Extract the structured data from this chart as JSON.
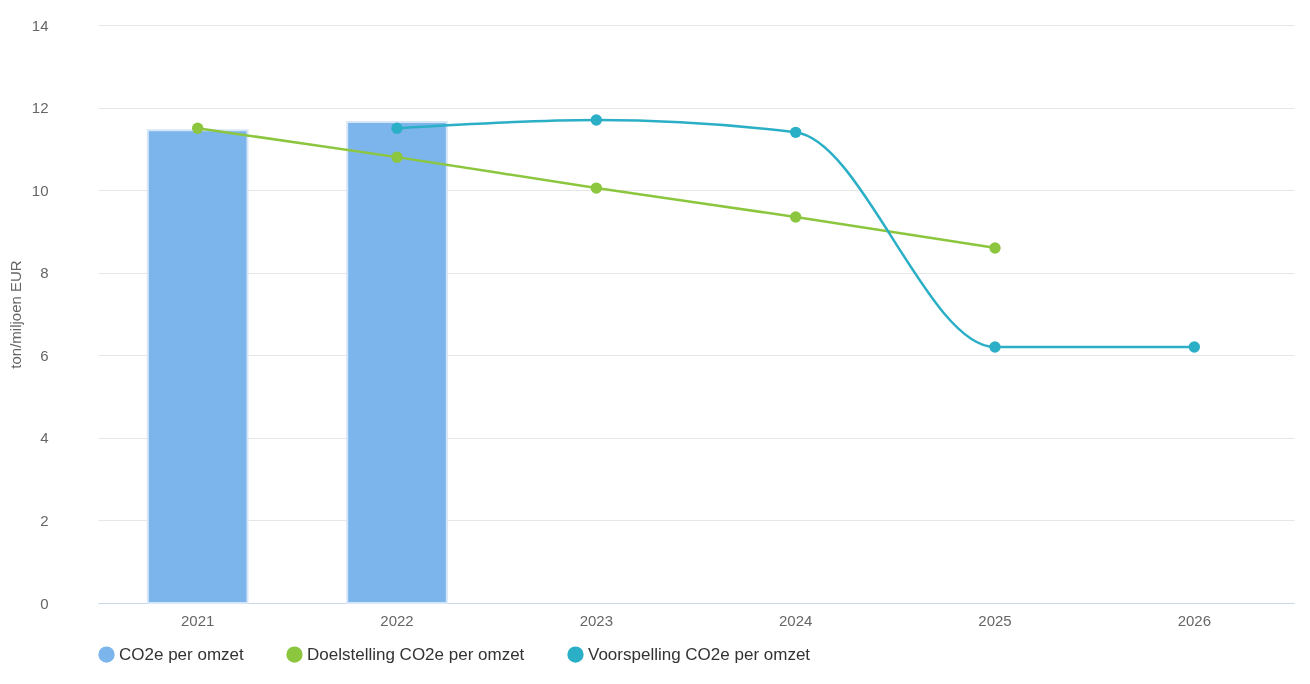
{
  "chart_data": {
    "type": "bar",
    "ylabel": "ton/miljoen EUR",
    "categories": [
      "2021",
      "2022",
      "2023",
      "2024",
      "2025",
      "2026"
    ],
    "series": [
      {
        "name": "CO2e per omzet",
        "color": "#7cb5ec",
        "values": [
          11.45,
          11.65,
          null,
          null,
          null,
          null
        ]
      },
      {
        "name": "Doelstelling CO2e per omzet",
        "type": "line",
        "color": "#8cc63f",
        "values": [
          11.5,
          10.8,
          10.05,
          9.35,
          8.6,
          null
        ]
      },
      {
        "name": "Voorspelling CO2e per omzet",
        "type": "line",
        "color": "#2bafc6",
        "values": [
          null,
          11.5,
          11.7,
          11.4,
          6.2,
          6.2
        ]
      }
    ],
    "ylim": [
      0,
      14
    ],
    "yticks": [
      0,
      2,
      4,
      6,
      8,
      10,
      12,
      14
    ],
    "grid": "y",
    "legend": "bottom",
    "marker": "circle"
  }
}
